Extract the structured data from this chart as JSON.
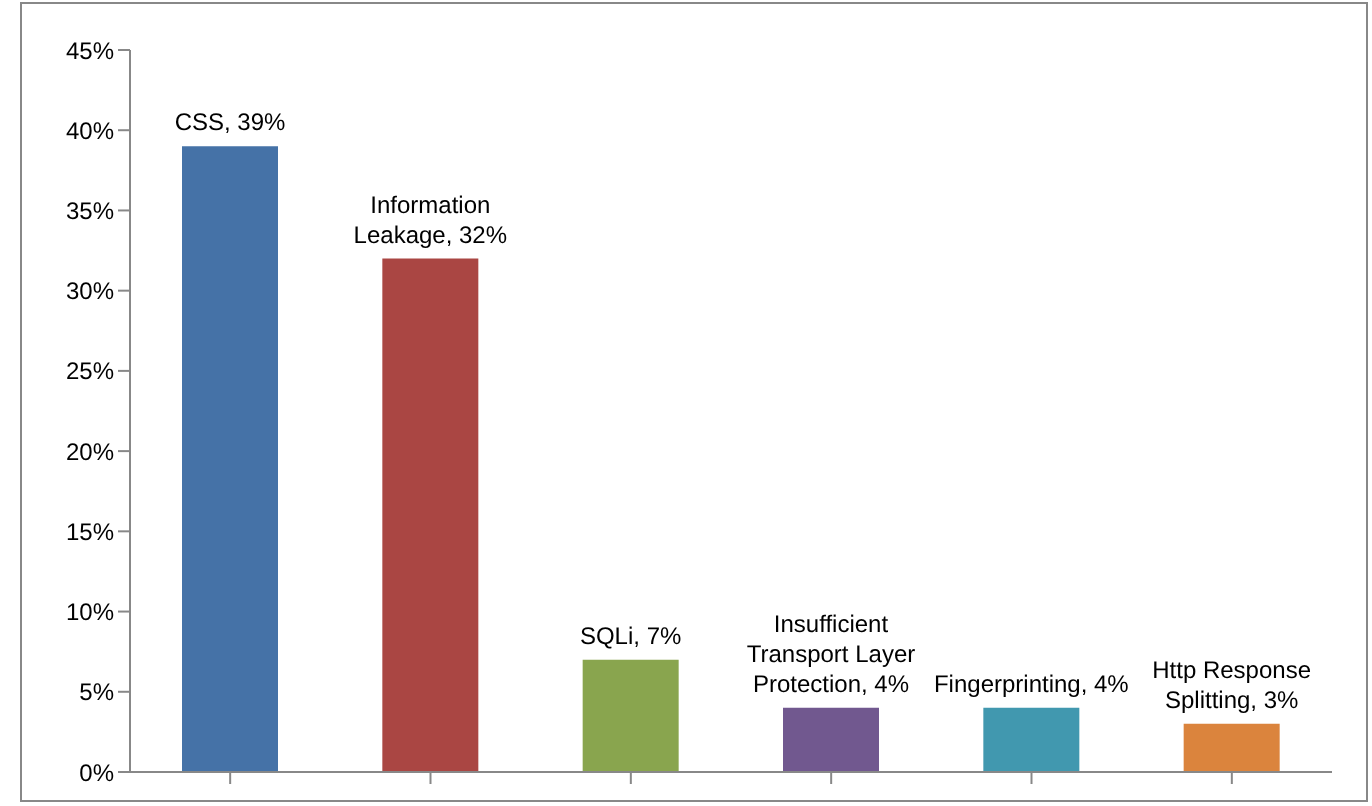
{
  "chart_data": {
    "type": "bar",
    "categories": [
      null,
      null,
      null,
      null,
      null,
      null
    ],
    "values": [
      39,
      32,
      7,
      4,
      4,
      3
    ],
    "colors": [
      "#4572a7",
      "#aa4643",
      "#89a54e",
      "#71588f",
      "#4198af",
      "#db843d"
    ],
    "value_labels": [
      "CSS, 39%",
      "Information Leakage, 32%",
      "SQLi, 7%",
      "Insufficient Transport Layer Protection, 4%",
      "Fingerprinting, 4%",
      "Http Response Splitting, 3%"
    ],
    "ylim": [
      0,
      45
    ],
    "yticks": [
      {
        "value": 0,
        "label": "0%"
      },
      {
        "value": 5,
        "label": "5%"
      },
      {
        "value": 10,
        "label": "10%"
      },
      {
        "value": 15,
        "label": "15%"
      },
      {
        "value": 20,
        "label": "20%"
      },
      {
        "value": 25,
        "label": "25%"
      },
      {
        "value": 30,
        "label": "30%"
      },
      {
        "value": 35,
        "label": "35%"
      },
      {
        "value": 40,
        "label": "40%"
      },
      {
        "value": 45,
        "label": "45%"
      }
    ],
    "grid": false,
    "legend": false
  }
}
